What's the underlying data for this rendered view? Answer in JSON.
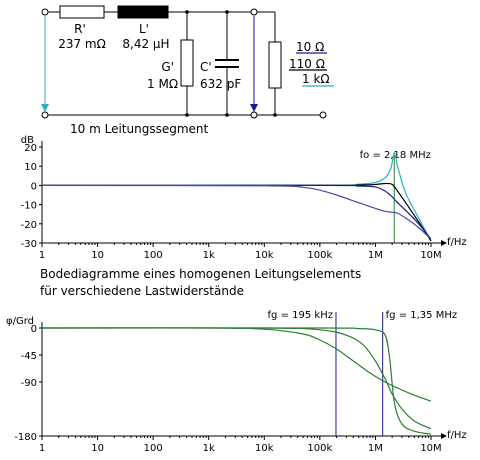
{
  "circuit": {
    "R_label": "R'",
    "R_value": "237 mΩ",
    "L_label": "L'",
    "L_value": "8,42 µH",
    "G_label": "G'",
    "G_value": "1 MΩ",
    "C_label": "C'",
    "C_value": "632 pF",
    "load_values": [
      "10 Ω",
      "110 Ω",
      "1 kΩ"
    ],
    "segment_label": "10 m Leitungssegment"
  },
  "caption": {
    "line1": "Bodediagramme eines homogenen Leitungselements",
    "line2": "für verschiedene Lastwiderstände"
  },
  "colors": {
    "load_10_ohm": "#1a1a90",
    "load_110_ohm": "#000000",
    "load_1k_ohm": "#2ab0c8",
    "magnitude_extra": "#4a4aa0",
    "phase_curves": "#2e7d32",
    "fg_markers": "#1a1a90",
    "resonance_marker": "#2e7d32",
    "arrows": "#2ab0c8"
  },
  "chart_data": [
    {
      "type": "line",
      "title": "",
      "ylabel": "dB",
      "xlabel": "f/Hz",
      "x_scale": "log",
      "xlim": [
        1,
        10000000
      ],
      "ylim": [
        -30,
        20
      ],
      "x_ticks": [
        1,
        10,
        100,
        1000,
        10000,
        100000,
        1000000,
        10000000
      ],
      "x_tick_labels": [
        "1",
        "10",
        "100",
        "1k",
        "10k",
        "100k",
        "1M",
        "10M"
      ],
      "y_ticks": [
        20,
        10,
        0,
        -10,
        -20,
        -30
      ],
      "y_tick_labels": [
        "20",
        "10",
        "0",
        "-10",
        "-20",
        "-30"
      ],
      "annotation": "fo = 2,18 MHz",
      "annotation_x": 2180000,
      "series": [
        {
          "color_key": "load_1k_ohm",
          "x": [
            1,
            100000,
            500000,
            1000000,
            1500000,
            1900000,
            2180000,
            2500000,
            3500000,
            6000000,
            10000000
          ],
          "y": [
            0,
            0.1,
            0.6,
            1.5,
            4,
            9,
            17,
            10,
            -4,
            -17,
            -29
          ]
        },
        {
          "color_key": "load_110_ohm",
          "x": [
            1,
            100000,
            500000,
            1000000,
            1500000,
            2000000,
            2500000,
            3500000,
            6000000,
            10000000
          ],
          "y": [
            0,
            0,
            0.2,
            0.5,
            1,
            0.5,
            -3,
            -9,
            -19,
            -29
          ]
        },
        {
          "color_key": "load_10_ohm",
          "x": [
            1,
            100000,
            500000,
            1000000,
            1500000,
            2000000,
            2500000,
            3500000,
            6000000,
            10000000
          ],
          "y": [
            0,
            0,
            -0.3,
            -0.8,
            -3,
            -6,
            -9,
            -13,
            -20,
            -28
          ]
        },
        {
          "color_key": "magnitude_extra",
          "x": [
            1,
            10000,
            50000,
            100000,
            200000,
            500000,
            1000000,
            1500000,
            2000000,
            2500000,
            3500000,
            6000000,
            10000000
          ],
          "y": [
            0,
            -0.2,
            -1,
            -2.5,
            -5,
            -9,
            -12,
            -13.5,
            -14,
            -14.5,
            -17,
            -22,
            -28
          ]
        }
      ]
    },
    {
      "type": "line",
      "title": "",
      "ylabel": "φ/Grd",
      "xlabel": "f/Hz",
      "x_scale": "log",
      "xlim": [
        1,
        10000000
      ],
      "ylim": [
        -180,
        0
      ],
      "x_ticks": [
        1,
        10,
        100,
        1000,
        10000,
        100000,
        1000000,
        10000000
      ],
      "x_tick_labels": [
        "1",
        "10",
        "100",
        "1k",
        "10k",
        "100k",
        "1M",
        "10M"
      ],
      "y_ticks": [
        0,
        -45,
        -90,
        -180
      ],
      "y_tick_labels": [
        "0",
        "-45",
        "-90",
        "-180"
      ],
      "markers": [
        {
          "label": "fg = 195 kHz",
          "x": 195000
        },
        {
          "label": "fg = 1,35 MHz",
          "x": 1350000
        }
      ],
      "series": [
        {
          "color_key": "phase_curves",
          "x": [
            1,
            1000,
            10000,
            50000,
            100000,
            200000,
            400000,
            800000,
            1500000,
            2500000,
            5000000,
            10000000
          ],
          "y": [
            0,
            0,
            -2,
            -10,
            -20,
            -35,
            -55,
            -75,
            -90,
            -100,
            -112,
            -122
          ]
        },
        {
          "color_key": "phase_curves",
          "x": [
            1,
            10000,
            100000,
            300000,
            600000,
            1000000,
            1500000,
            2000000,
            3000000,
            5000000,
            10000000
          ],
          "y": [
            0,
            0,
            -3,
            -12,
            -28,
            -55,
            -85,
            -110,
            -135,
            -155,
            -168
          ]
        },
        {
          "color_key": "phase_curves",
          "x": [
            1,
            100000,
            500000,
            1000000,
            1500000,
            1800000,
            2200000,
            3000000,
            5000000,
            10000000
          ],
          "y": [
            0,
            0,
            -1,
            -3,
            -12,
            -50,
            -125,
            -160,
            -172,
            -177
          ]
        }
      ]
    }
  ]
}
